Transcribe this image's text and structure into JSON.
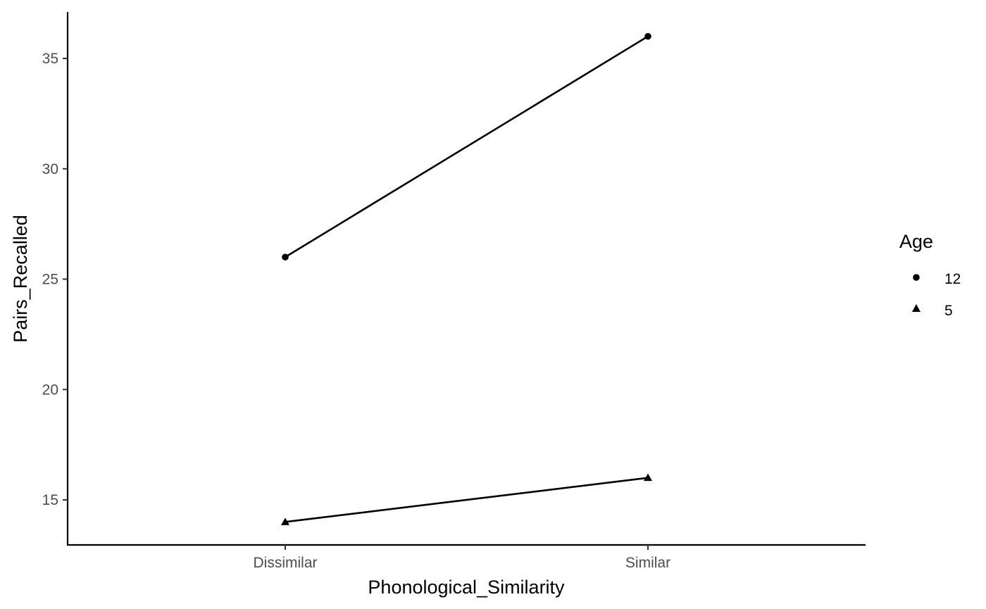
{
  "chart_data": {
    "type": "line",
    "title": "",
    "xlabel": "Phonological_Similarity",
    "ylabel": "Pairs_Recalled",
    "categories": [
      "Dissimilar",
      "Similar"
    ],
    "ylim": [
      13.0,
      37.0
    ],
    "yticks": [
      15,
      20,
      25,
      30,
      35
    ],
    "grid": false,
    "legend": {
      "title": "Age",
      "position": "right"
    },
    "series": [
      {
        "name": "12",
        "marker": "circle",
        "values": [
          26,
          36
        ]
      },
      {
        "name": "5",
        "marker": "triangle",
        "values": [
          14,
          16
        ]
      }
    ],
    "colors": {
      "line": "#000000",
      "axis": "#000000",
      "tick_text": "#4d4d4d"
    }
  }
}
